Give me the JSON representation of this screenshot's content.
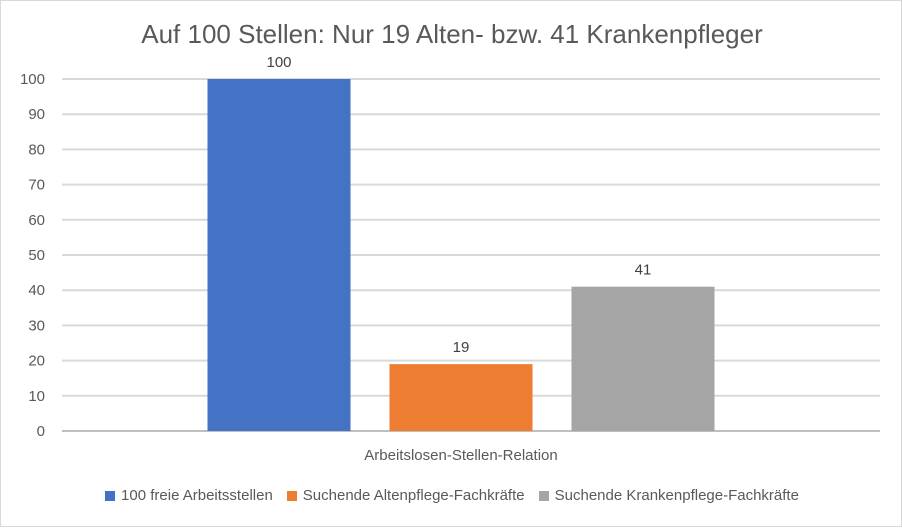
{
  "chart_data": {
    "type": "bar",
    "title": "Auf 100 Stellen: Nur 19 Alten- bzw. 41 Krankenpfleger",
    "categories": [
      "Arbeitslosen-Stellen-Relation"
    ],
    "series": [
      {
        "name": "100 freie Arbeitsstellen",
        "values": [
          100
        ],
        "color": "#4472c4"
      },
      {
        "name": "Suchende Altenpflege-Fachkräfte",
        "values": [
          19
        ],
        "color": "#ed7d31"
      },
      {
        "name": "Suchende Krankenpflege-Fachkräfte",
        "values": [
          41
        ],
        "color": "#a5a5a5"
      }
    ],
    "xlabel": "",
    "ylabel": "",
    "ylim": [
      0,
      100
    ],
    "yticks": [
      0,
      10,
      20,
      30,
      40,
      50,
      60,
      70,
      80,
      90,
      100
    ],
    "grid": true,
    "legend_position": "bottom",
    "data_labels": true
  }
}
